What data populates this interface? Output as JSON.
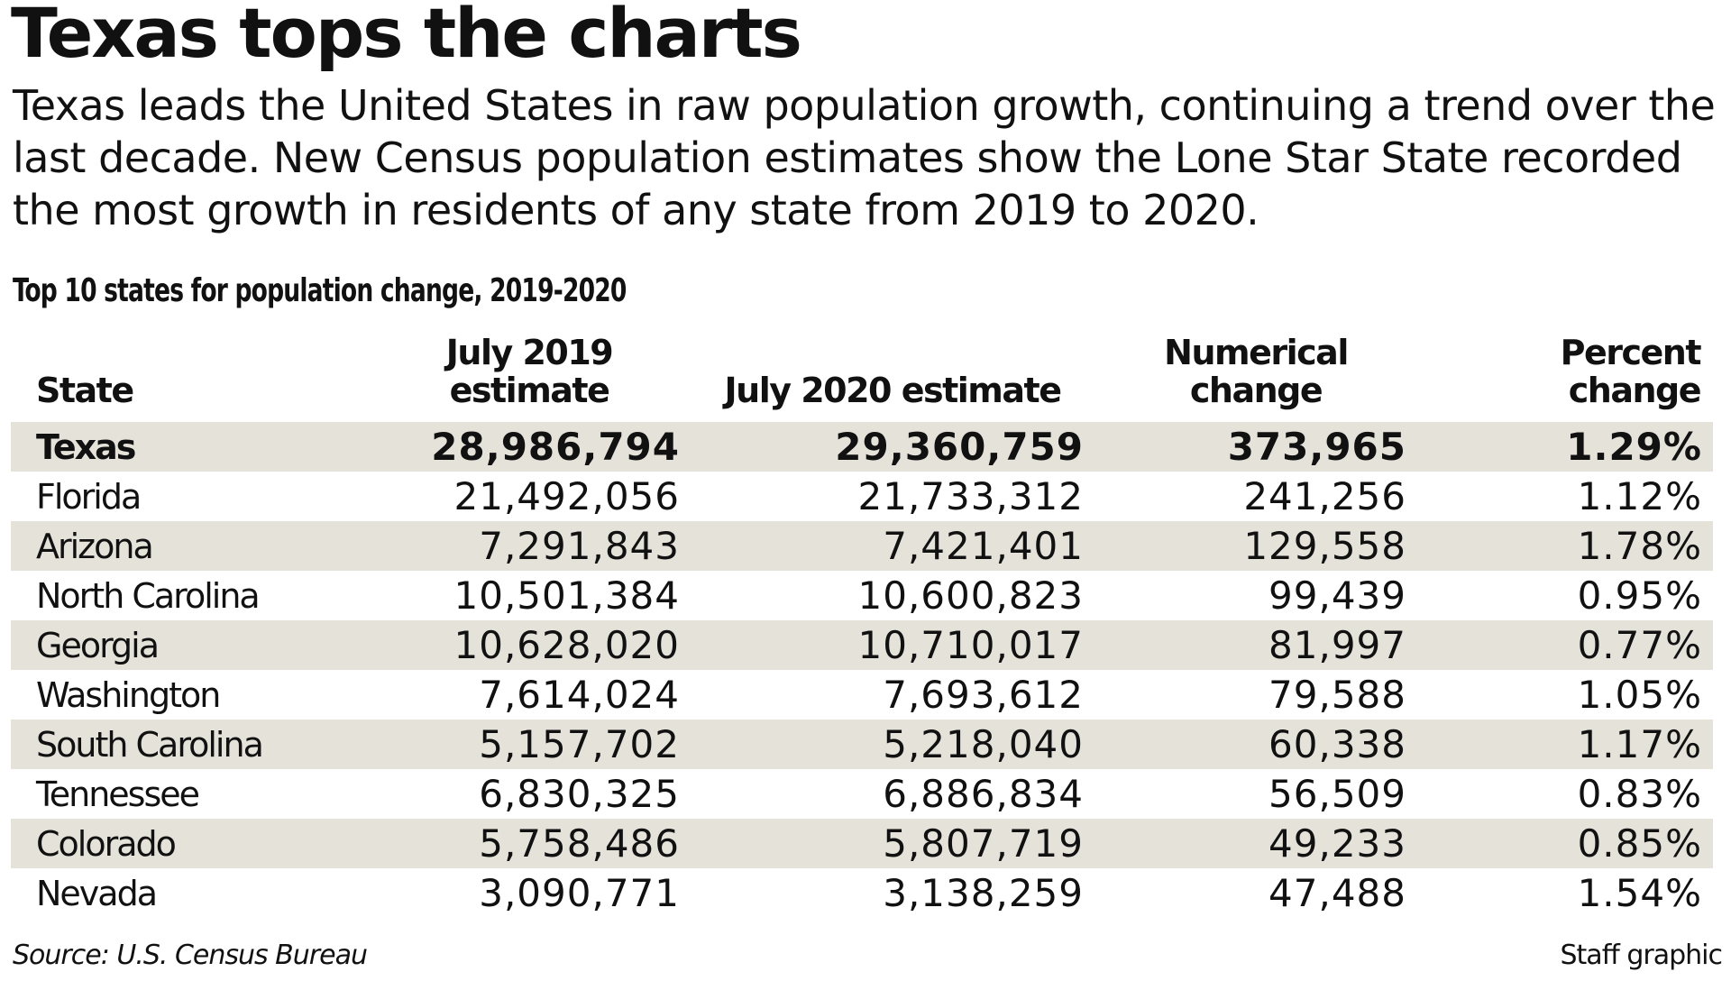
{
  "title": "Texas tops the charts",
  "intro": "Texas leads the United States in raw population growth, continuing a trend over the last decade. New Census population estimates show the Lone Star State recorded the most growth in residents of any state from 2019 to 2020.",
  "table_title": "Top 10 states for population change, 2019-2020",
  "headers": {
    "state": "State",
    "jul2019": "July 2019 estimate",
    "jul2020": "July 2020 estimate",
    "num": "Numerical change",
    "pct": "Percent change"
  },
  "rows": [
    [
      "Texas",
      "28,986,794",
      "29,360,759",
      "373,965",
      "1.29%"
    ],
    [
      "Florida",
      "21,492,056",
      "21,733,312",
      "241,256",
      "1.12%"
    ],
    [
      "Arizona",
      "7,291,843",
      "7,421,401",
      "129,558",
      "1.78%"
    ],
    [
      "North Carolina",
      "10,501,384",
      "10,600,823",
      "99,439",
      "0.95%"
    ],
    [
      "Georgia",
      "10,628,020",
      "10,710,017",
      "81,997",
      "0.77%"
    ],
    [
      "Washington",
      "7,614,024",
      "7,693,612",
      "79,588",
      "1.05%"
    ],
    [
      "South Carolina",
      "5,157,702",
      "5,218,040",
      "60,338",
      "1.17%"
    ],
    [
      "Tennessee",
      "6,830,325",
      "6,886,834",
      "56,509",
      "0.83%"
    ],
    [
      "Colorado",
      "5,758,486",
      "5,807,719",
      "49,233",
      "0.85%"
    ],
    [
      "Nevada",
      "3,090,771",
      "3,138,259",
      "47,488",
      "1.54%"
    ]
  ],
  "source": "Source: U.S. Census Bureau",
  "credit": "Staff graphic",
  "colors": {
    "band": "#e5e2da",
    "text": "#111111"
  }
}
